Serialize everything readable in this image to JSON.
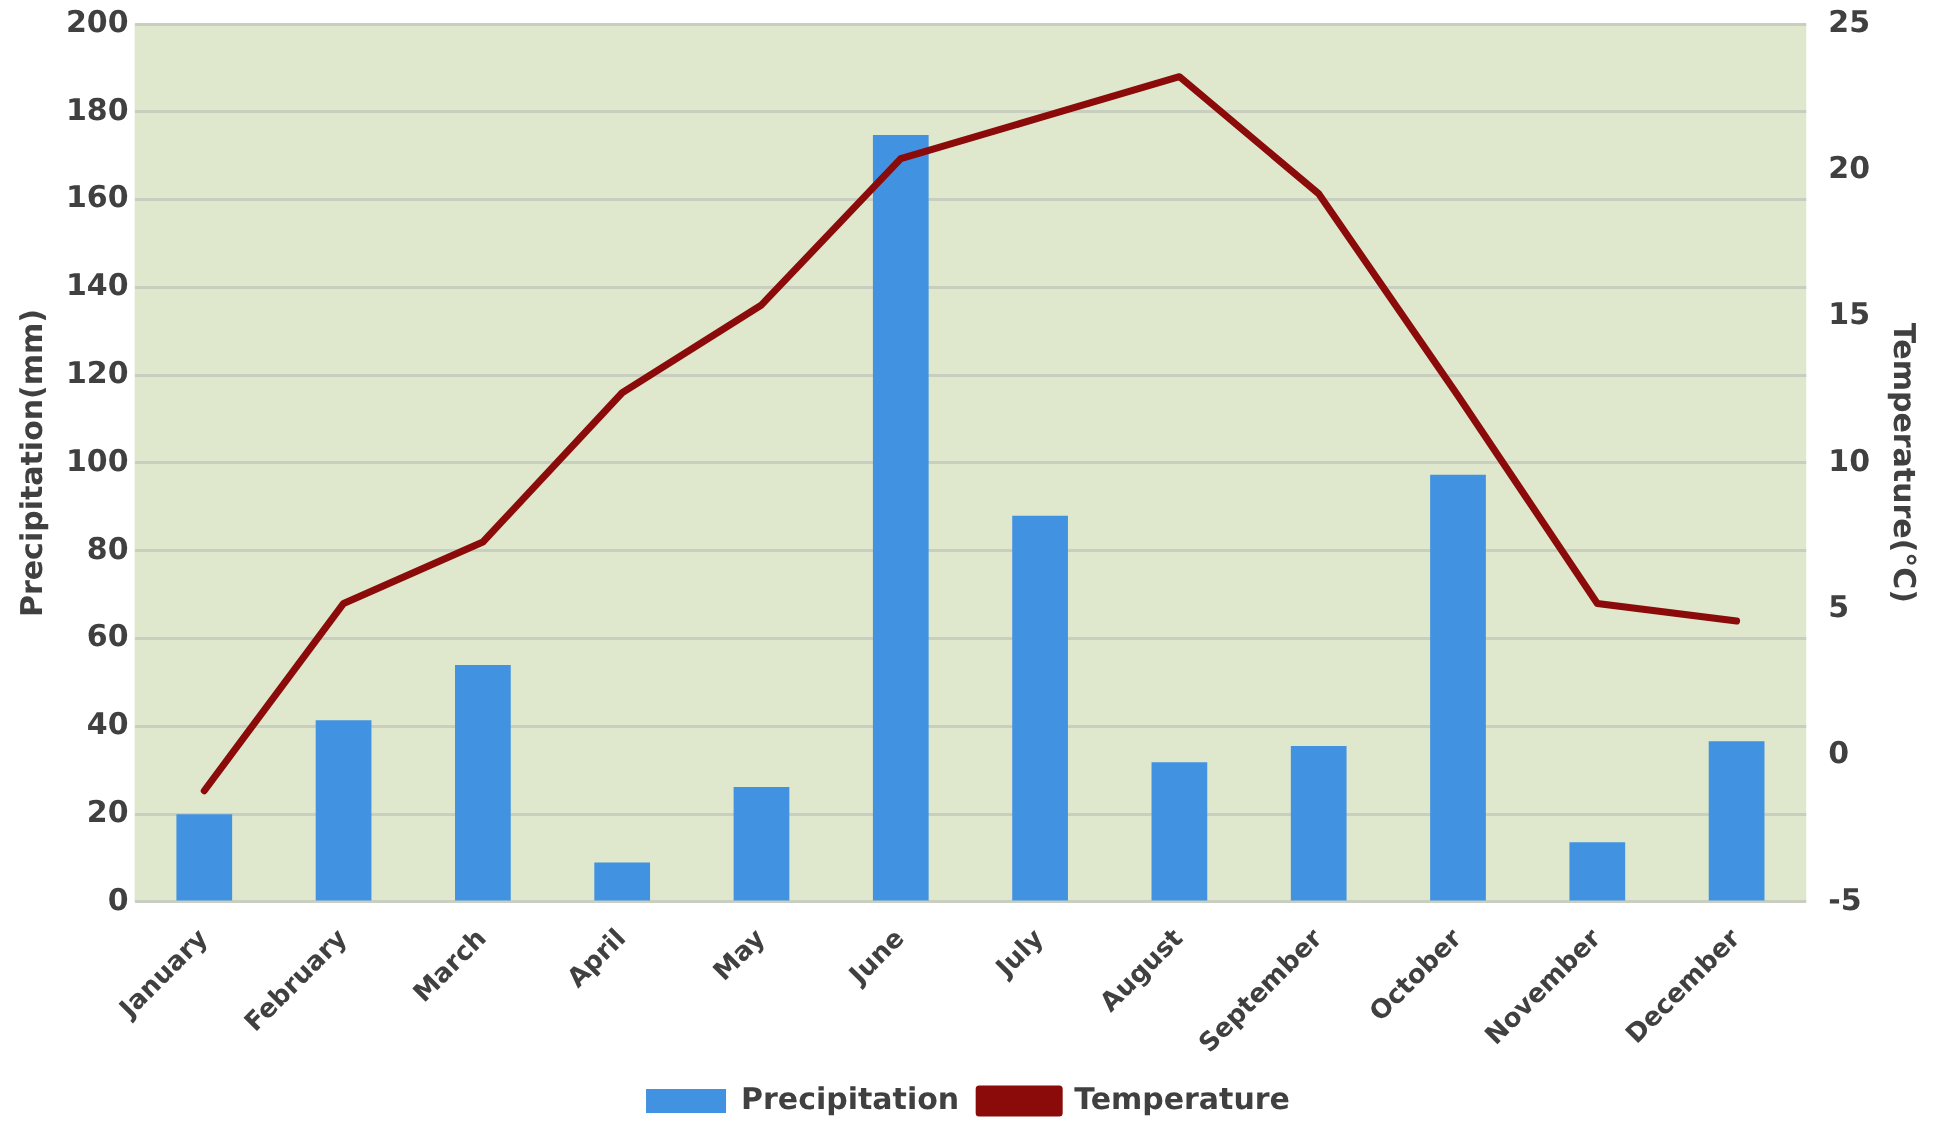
{
  "chart_data": {
    "type": "bar",
    "ylabel": "Precipitation(mm)",
    "y2label": "Temperature(°C)",
    "categories": [
      "January",
      "February",
      "March",
      "April",
      "May",
      "June",
      "July",
      "August",
      "September",
      "October",
      "November",
      "December"
    ],
    "series": [
      {
        "name": "Precipitation",
        "color": "#4192e1",
        "values": [
          20,
          41.4,
          54,
          9,
          26.2,
          174.7,
          88,
          31.8,
          35.5,
          97.3,
          13.6,
          36.6
        ]
      },
      {
        "name": "Temperature",
        "type": "line",
        "axis": "y2",
        "color": "#8b0a0a",
        "values": [
          -1.2,
          5.2,
          7.3,
          12.4,
          15.4,
          20.4,
          21.8,
          23.2,
          19.2,
          12.3,
          5.2,
          4.6
        ]
      }
    ],
    "ylim": [
      0,
      200
    ],
    "yticks": [
      0,
      20,
      40,
      60,
      80,
      100,
      120,
      140,
      160,
      180,
      200
    ],
    "y2lim": [
      -5,
      25
    ],
    "y2ticks": [
      -5,
      0,
      5,
      10,
      15,
      20,
      25
    ],
    "grid": "y",
    "legend": "bottom",
    "marker": "none",
    "line_style": "solid"
  }
}
